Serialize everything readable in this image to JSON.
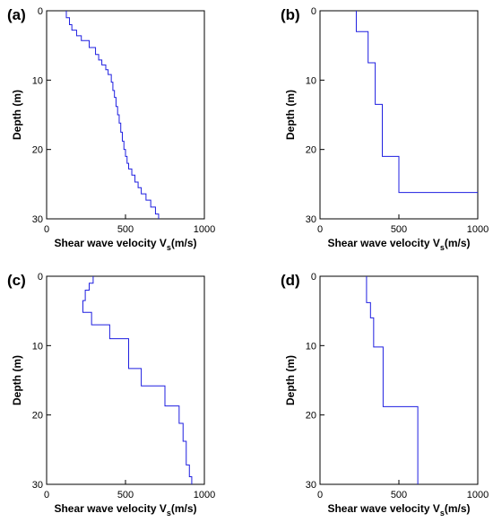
{
  "chart_data": [
    {
      "panel": "(a)",
      "type": "line",
      "xlabel_main": "Shear wave velocity V",
      "xlabel_sub": "s",
      "xlabel_unit": "(m/s)",
      "ylabel": "Depth (m)",
      "xlim": [
        0,
        1000
      ],
      "ylim": [
        0,
        30
      ],
      "xticks": [
        0,
        500,
        1000
      ],
      "yticks": [
        0,
        10,
        20,
        30
      ],
      "line_color": "#1f1fe0",
      "series": [
        {
          "x": [
            125,
            125,
            145,
            145,
            160,
            160,
            190,
            190,
            220,
            220,
            270,
            270,
            310,
            310,
            330,
            330,
            350,
            350,
            375,
            375,
            390,
            390,
            410,
            410,
            420,
            420,
            430,
            430,
            440,
            440,
            450,
            450,
            460,
            460,
            470,
            470,
            480,
            480,
            490,
            490,
            500,
            500,
            510,
            510,
            520,
            520,
            540,
            540,
            560,
            560,
            580,
            580,
            600,
            600,
            630,
            630,
            660,
            660,
            690,
            690,
            710,
            710
          ],
          "y": [
            0,
            1.0,
            1.0,
            2.0,
            2.0,
            2.8,
            2.8,
            3.6,
            3.6,
            4.3,
            4.3,
            5.3,
            5.3,
            6.3,
            6.3,
            7.1,
            7.1,
            7.8,
            7.8,
            8.5,
            8.5,
            9.2,
            9.2,
            10.3,
            10.3,
            11.5,
            11.5,
            12.5,
            12.5,
            13.8,
            13.8,
            15.0,
            15.0,
            16.2,
            16.2,
            17.5,
            17.5,
            18.8,
            18.8,
            20.0,
            20.0,
            21.0,
            21.0,
            22.0,
            22.0,
            22.8,
            22.8,
            23.7,
            23.7,
            24.7,
            24.7,
            25.5,
            25.5,
            26.4,
            26.4,
            27.3,
            27.3,
            28.3,
            28.3,
            29.3,
            29.3,
            30
          ]
        }
      ]
    },
    {
      "panel": "(b)",
      "type": "line",
      "xlabel_main": "Shear wave velocity V",
      "xlabel_sub": "s",
      "xlabel_unit": "(m/s)",
      "ylabel": "Depth (m)",
      "xlim": [
        0,
        1000
      ],
      "ylim": [
        0,
        30
      ],
      "xticks": [
        0,
        500,
        1000
      ],
      "yticks": [
        0,
        10,
        20,
        30
      ],
      "line_color": "#1f1fe0",
      "series": [
        {
          "x": [
            230,
            230,
            305,
            305,
            350,
            350,
            375,
            375,
            395,
            395,
            500,
            500,
            1000
          ],
          "y": [
            0,
            3.0,
            3.0,
            7.5,
            7.5,
            13.5,
            13.5,
            13.5,
            13.5,
            21.0,
            21.0,
            26.2,
            26.2
          ]
        }
      ]
    },
    {
      "panel": "(c)",
      "type": "line",
      "xlabel_main": "Shear wave velocity V",
      "xlabel_sub": "s",
      "xlabel_unit": "(m/s)",
      "ylabel": "Depth (m)",
      "xlim": [
        0,
        1000
      ],
      "ylim": [
        0,
        30
      ],
      "xticks": [
        0,
        500,
        1000
      ],
      "yticks": [
        0,
        10,
        20,
        30
      ],
      "line_color": "#1f1fe0",
      "series": [
        {
          "x": [
            295,
            295,
            270,
            270,
            245,
            245,
            230,
            230,
            285,
            285,
            400,
            400,
            520,
            520,
            600,
            600,
            750,
            750,
            840,
            840,
            865,
            865,
            885,
            885,
            905,
            905,
            920,
            920
          ],
          "y": [
            0,
            1.0,
            1.0,
            2.0,
            2.0,
            3.5,
            3.5,
            5.2,
            5.2,
            7.0,
            7.0,
            9.0,
            9.0,
            13.3,
            13.3,
            15.8,
            15.8,
            18.7,
            18.7,
            21.2,
            21.2,
            23.8,
            23.8,
            27.2,
            27.2,
            28.9,
            28.9,
            30
          ]
        }
      ]
    },
    {
      "panel": "(d)",
      "type": "line",
      "xlabel_main": "Shear wave velocity V",
      "xlabel_sub": "s",
      "xlabel_unit": "(m/s)",
      "ylabel": "Depth (m)",
      "xlim": [
        0,
        1000
      ],
      "ylim": [
        0,
        30
      ],
      "xticks": [
        0,
        500,
        1000
      ],
      "yticks": [
        0,
        10,
        20,
        30
      ],
      "line_color": "#1f1fe0",
      "series": [
        {
          "x": [
            295,
            295,
            320,
            320,
            340,
            340,
            400,
            400,
            620,
            620
          ],
          "y": [
            0,
            3.8,
            3.8,
            6.0,
            6.0,
            10.2,
            10.2,
            18.8,
            18.8,
            30
          ]
        }
      ]
    }
  ]
}
